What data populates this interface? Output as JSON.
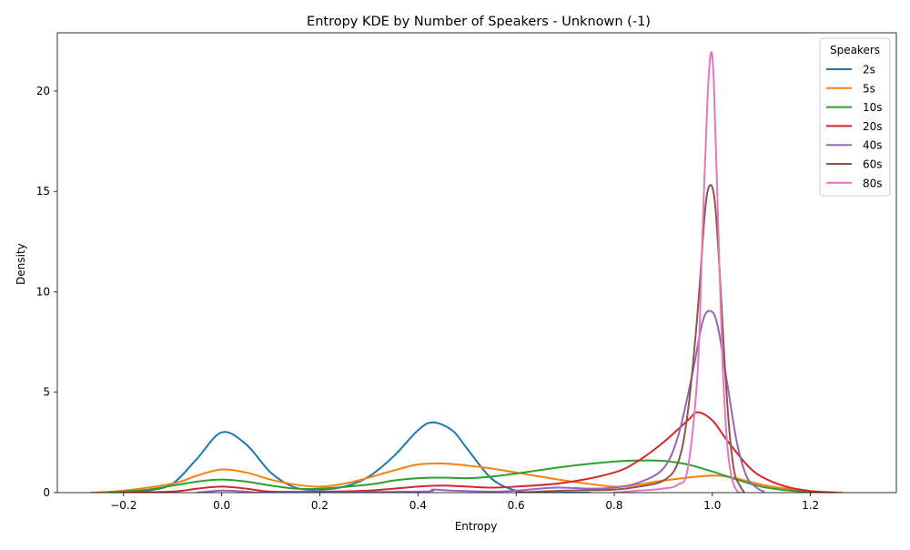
{
  "chart_data": {
    "type": "line",
    "title": "Entropy KDE by Number of Speakers - Unknown (-1)",
    "xlabel": "Entropy",
    "ylabel": "Density",
    "xlim": [
      -0.335,
      1.375
    ],
    "ylim": [
      0,
      22.9
    ],
    "x_ticks": [
      -0.2,
      0.0,
      0.2,
      0.4,
      0.6,
      0.8,
      1.0,
      1.2
    ],
    "x_tick_labels": [
      "−0.2",
      "0.0",
      "0.2",
      "0.4",
      "0.6",
      "0.8",
      "1.0",
      "1.2"
    ],
    "y_ticks": [
      0,
      5,
      10,
      15,
      20
    ],
    "y_tick_labels": [
      "0",
      "5",
      "10",
      "15",
      "20"
    ],
    "grid": false,
    "legend": {
      "title": "Speakers",
      "placement": "top-right"
    },
    "series": [
      {
        "name": "2s",
        "color": "#1f77b4",
        "points": [
          [
            -0.2,
            0.0
          ],
          [
            -0.15,
            0.1
          ],
          [
            -0.1,
            0.45
          ],
          [
            -0.05,
            1.7
          ],
          [
            0.0,
            3.0
          ],
          [
            0.05,
            2.4
          ],
          [
            0.1,
            1.0
          ],
          [
            0.15,
            0.25
          ],
          [
            0.2,
            0.15
          ],
          [
            0.25,
            0.3
          ],
          [
            0.3,
            0.8
          ],
          [
            0.35,
            1.8
          ],
          [
            0.4,
            3.1
          ],
          [
            0.43,
            3.5
          ],
          [
            0.47,
            3.1
          ],
          [
            0.5,
            2.2
          ],
          [
            0.55,
            0.7
          ],
          [
            0.6,
            0.1
          ],
          [
            0.65,
            0.0
          ],
          [
            0.7,
            0.0
          ],
          [
            0.75,
            0.0
          ]
        ]
      },
      {
        "name": "5s",
        "color": "#ff7f0e",
        "points": [
          [
            -0.265,
            0.0
          ],
          [
            -0.2,
            0.1
          ],
          [
            -0.1,
            0.45
          ],
          [
            -0.05,
            0.85
          ],
          [
            0.0,
            1.15
          ],
          [
            0.05,
            1.0
          ],
          [
            0.1,
            0.65
          ],
          [
            0.15,
            0.4
          ],
          [
            0.2,
            0.3
          ],
          [
            0.25,
            0.45
          ],
          [
            0.3,
            0.75
          ],
          [
            0.35,
            1.1
          ],
          [
            0.4,
            1.4
          ],
          [
            0.45,
            1.45
          ],
          [
            0.5,
            1.35
          ],
          [
            0.55,
            1.2
          ],
          [
            0.6,
            1.0
          ],
          [
            0.7,
            0.6
          ],
          [
            0.8,
            0.3
          ],
          [
            0.85,
            0.4
          ],
          [
            0.9,
            0.6
          ],
          [
            1.0,
            0.85
          ],
          [
            1.05,
            0.7
          ],
          [
            1.1,
            0.4
          ],
          [
            1.15,
            0.2
          ],
          [
            1.2,
            0.07
          ],
          [
            1.265,
            0.0
          ]
        ]
      },
      {
        "name": "10s",
        "color": "#2ca02c",
        "points": [
          [
            -0.23,
            0.0
          ],
          [
            -0.15,
            0.15
          ],
          [
            -0.1,
            0.35
          ],
          [
            -0.05,
            0.55
          ],
          [
            0.0,
            0.65
          ],
          [
            0.05,
            0.55
          ],
          [
            0.1,
            0.35
          ],
          [
            0.15,
            0.2
          ],
          [
            0.2,
            0.2
          ],
          [
            0.3,
            0.4
          ],
          [
            0.35,
            0.6
          ],
          [
            0.4,
            0.72
          ],
          [
            0.45,
            0.75
          ],
          [
            0.5,
            0.72
          ],
          [
            0.55,
            0.8
          ],
          [
            0.6,
            0.95
          ],
          [
            0.7,
            1.3
          ],
          [
            0.8,
            1.55
          ],
          [
            0.85,
            1.6
          ],
          [
            0.9,
            1.58
          ],
          [
            0.95,
            1.4
          ],
          [
            1.0,
            1.05
          ],
          [
            1.05,
            0.65
          ],
          [
            1.1,
            0.3
          ],
          [
            1.15,
            0.12
          ],
          [
            1.2,
            0.03
          ],
          [
            1.23,
            0.0
          ]
        ]
      },
      {
        "name": "20s",
        "color": "#d62728",
        "points": [
          [
            -0.2,
            0.0
          ],
          [
            -0.1,
            0.05
          ],
          [
            -0.05,
            0.2
          ],
          [
            0.0,
            0.3
          ],
          [
            0.05,
            0.2
          ],
          [
            0.1,
            0.05
          ],
          [
            0.2,
            0.05
          ],
          [
            0.3,
            0.1
          ],
          [
            0.4,
            0.3
          ],
          [
            0.45,
            0.35
          ],
          [
            0.5,
            0.3
          ],
          [
            0.55,
            0.25
          ],
          [
            0.6,
            0.3
          ],
          [
            0.7,
            0.5
          ],
          [
            0.8,
            1.0
          ],
          [
            0.85,
            1.6
          ],
          [
            0.9,
            2.5
          ],
          [
            0.95,
            3.6
          ],
          [
            0.97,
            4.0
          ],
          [
            1.0,
            3.6
          ],
          [
            1.03,
            2.6
          ],
          [
            1.07,
            1.4
          ],
          [
            1.1,
            0.8
          ],
          [
            1.15,
            0.3
          ],
          [
            1.2,
            0.08
          ],
          [
            1.25,
            0.0
          ]
        ]
      },
      {
        "name": "40s",
        "color": "#9467bd",
        "points": [
          [
            -0.05,
            0.0
          ],
          [
            0.0,
            0.1
          ],
          [
            0.05,
            0.05
          ],
          [
            0.1,
            0.0
          ],
          [
            0.4,
            0.05
          ],
          [
            0.43,
            0.15
          ],
          [
            0.47,
            0.1
          ],
          [
            0.55,
            0.05
          ],
          [
            0.6,
            0.1
          ],
          [
            0.68,
            0.25
          ],
          [
            0.75,
            0.2
          ],
          [
            0.8,
            0.25
          ],
          [
            0.85,
            0.5
          ],
          [
            0.9,
            1.2
          ],
          [
            0.93,
            2.8
          ],
          [
            0.96,
            6.0
          ],
          [
            0.98,
            8.5
          ],
          [
            0.995,
            9.05
          ],
          [
            1.01,
            8.4
          ],
          [
            1.03,
            5.5
          ],
          [
            1.05,
            2.5
          ],
          [
            1.07,
            0.8
          ],
          [
            1.09,
            0.25
          ],
          [
            1.105,
            0.05
          ]
        ]
      },
      {
        "name": "60s",
        "color": "#8c564b",
        "points": [
          [
            0.6,
            0.0
          ],
          [
            0.7,
            0.1
          ],
          [
            0.8,
            0.15
          ],
          [
            0.85,
            0.3
          ],
          [
            0.9,
            0.6
          ],
          [
            0.93,
            1.5
          ],
          [
            0.95,
            4.0
          ],
          [
            0.97,
            9.0
          ],
          [
            0.985,
            14.0
          ],
          [
            0.995,
            15.3
          ],
          [
            1.005,
            14.5
          ],
          [
            1.015,
            11.0
          ],
          [
            1.025,
            6.5
          ],
          [
            1.035,
            3.0
          ],
          [
            1.045,
            1.0
          ],
          [
            1.055,
            0.4
          ],
          [
            1.065,
            0.0
          ]
        ]
      },
      {
        "name": "80s",
        "color": "#e377c2",
        "points": [
          [
            0.8,
            0.0
          ],
          [
            0.85,
            0.1
          ],
          [
            0.9,
            0.2
          ],
          [
            0.93,
            0.4
          ],
          [
            0.95,
            1.2
          ],
          [
            0.97,
            6.0
          ],
          [
            0.98,
            13.0
          ],
          [
            0.99,
            19.5
          ],
          [
            0.997,
            21.9
          ],
          [
            1.003,
            20.5
          ],
          [
            1.01,
            15.0
          ],
          [
            1.02,
            7.0
          ],
          [
            1.03,
            2.5
          ],
          [
            1.04,
            0.7
          ],
          [
            1.05,
            0.1
          ],
          [
            1.055,
            0.0
          ]
        ]
      }
    ]
  }
}
